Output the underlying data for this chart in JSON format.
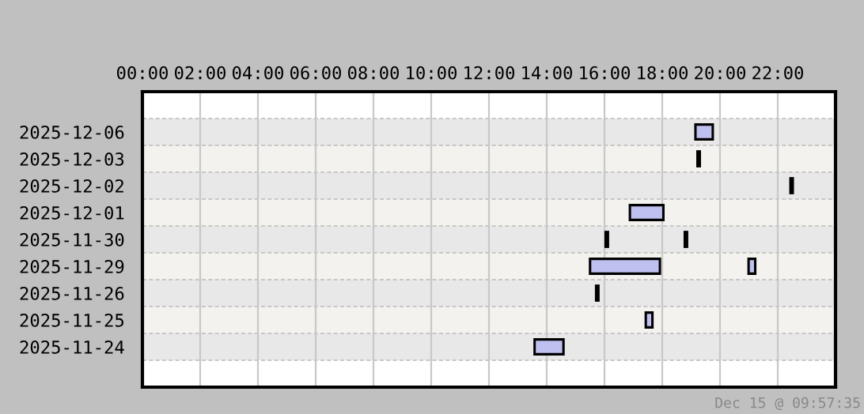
{
  "chart_data": {
    "type": "bar",
    "orientation": "horizontal",
    "categories": [
      "2025-12-06",
      "2025-12-03",
      "2025-12-02",
      "2025-12-01",
      "2025-11-30",
      "2025-11-29",
      "2025-11-26",
      "2025-11-25",
      "2025-11-24"
    ],
    "series": [
      {
        "color": "#c0c0f0",
        "base": [
          19.15,
          19.22,
          22.44,
          16.88,
          16.04,
          15.5,
          15.71,
          17.43,
          13.58
        ],
        "values": [
          0.6,
          0.08,
          0.08,
          1.16,
          0.08,
          2.42,
          0.08,
          0.23,
          1.0
        ]
      },
      {
        "color": "#c0c0f0",
        "base": [
          null,
          null,
          null,
          null,
          18.78,
          20.99,
          null,
          null,
          null
        ],
        "values": [
          null,
          null,
          null,
          null,
          0.08,
          0.23,
          null,
          null,
          null
        ]
      }
    ],
    "xlim": [
      0,
      24
    ],
    "xticks": [
      {
        "value": 0,
        "label": "00:00"
      },
      {
        "value": 2,
        "label": "02:00"
      },
      {
        "value": 4,
        "label": "04:00"
      },
      {
        "value": 6,
        "label": "06:00"
      },
      {
        "value": 8,
        "label": "08:00"
      },
      {
        "value": 10,
        "label": "10:00"
      },
      {
        "value": 12,
        "label": "12:00"
      },
      {
        "value": 14,
        "label": "14:00"
      },
      {
        "value": 16,
        "label": "16:00"
      },
      {
        "value": 18,
        "label": "18:00"
      },
      {
        "value": 20,
        "label": "20:00"
      },
      {
        "value": 22,
        "label": "22:00"
      }
    ],
    "grid": true,
    "annotations": [
      "Dec 15 @ 09:57:35"
    ]
  }
}
